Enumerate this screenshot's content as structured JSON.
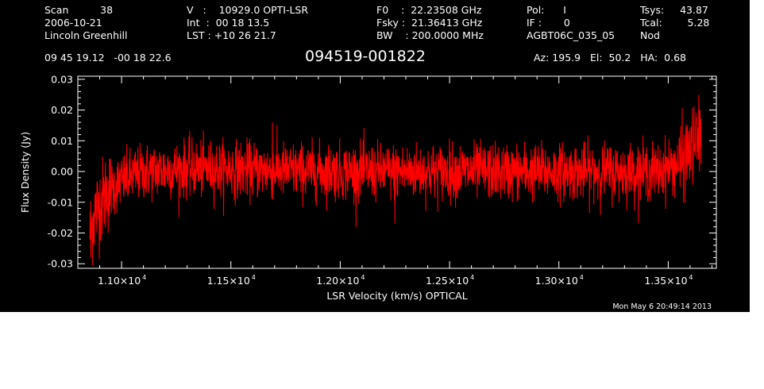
{
  "header": {
    "col1": [
      "Scan          38",
      "2006-10-21",
      "Lincoln Greenhill"
    ],
    "col2": [
      "V   :    10929.0 OPTI-LSR",
      "Int  :  00 18 13.5",
      "LST : +10 26 21.7"
    ],
    "col3": [
      "F0    :  22.23508 GHz",
      "Fsky :  21.36413 GHz",
      "BW    : 200.0000 MHz"
    ],
    "col4": [
      "Pol:      I",
      "IF :       0",
      "AGBT06C_035_05"
    ],
    "col5": [
      "Tsys:     43.87",
      "Tcal:        5.28",
      "Nod"
    ],
    "coords": "09 45 19.12   -00 18 22.6",
    "source": "094519-001822",
    "azelha": "Az: 195.9   El:  50.2   HA:  0.68",
    "date": "Mon May  6 20:49:14 2013"
  },
  "colors": {
    "background": "#000000",
    "axes": "#ffffff",
    "trace": "#ff0000"
  },
  "chart_data": {
    "type": "line",
    "xlabel": "LSR Velocity (km/s) OPTICAL",
    "ylabel": "Flux Density (Jy)",
    "xlim": [
      10800,
      13720
    ],
    "ylim": [
      -0.0315,
      0.031
    ],
    "xticks": [
      {
        "value": 11000,
        "label": "1.10×10",
        "exp": "4"
      },
      {
        "value": 11500,
        "label": "1.15×10",
        "exp": "4"
      },
      {
        "value": 12000,
        "label": "1.20×10",
        "exp": "4"
      },
      {
        "value": 12500,
        "label": "1.25×10",
        "exp": "4"
      },
      {
        "value": 13000,
        "label": "1.30×10",
        "exp": "4"
      },
      {
        "value": 13500,
        "label": "1.35×10",
        "exp": "4"
      }
    ],
    "yticks": [
      {
        "value": -0.03,
        "label": "-0.03"
      },
      {
        "value": -0.02,
        "label": "-0.02"
      },
      {
        "value": -0.01,
        "label": "-0.01"
      },
      {
        "value": 0.0,
        "label": "0.00"
      },
      {
        "value": 0.01,
        "label": "0.01"
      },
      {
        "value": 0.02,
        "label": "0.02"
      },
      {
        "value": 0.03,
        "label": "0.03"
      }
    ],
    "series": [
      {
        "x_start": 10855,
        "x_end": 13650,
        "baseline": [
          [
            10855,
            -0.02
          ],
          [
            10880,
            -0.013
          ],
          [
            10930,
            -0.007
          ],
          [
            11000,
            -0.003
          ],
          [
            11100,
            0.0
          ],
          [
            11300,
            0.001
          ],
          [
            12000,
            0.0
          ],
          [
            12500,
            0.0
          ],
          [
            13000,
            0.0
          ],
          [
            13450,
            0.0
          ],
          [
            13560,
            0.003
          ],
          [
            13600,
            0.007
          ],
          [
            13650,
            0.012
          ]
        ],
        "noise_rms": 0.0045,
        "extremes": [
          [
            10860,
            -0.028
          ],
          [
            13640,
            0.025
          ],
          [
            11690,
            0.016
          ],
          [
            12250,
            -0.017
          ]
        ]
      }
    ]
  }
}
